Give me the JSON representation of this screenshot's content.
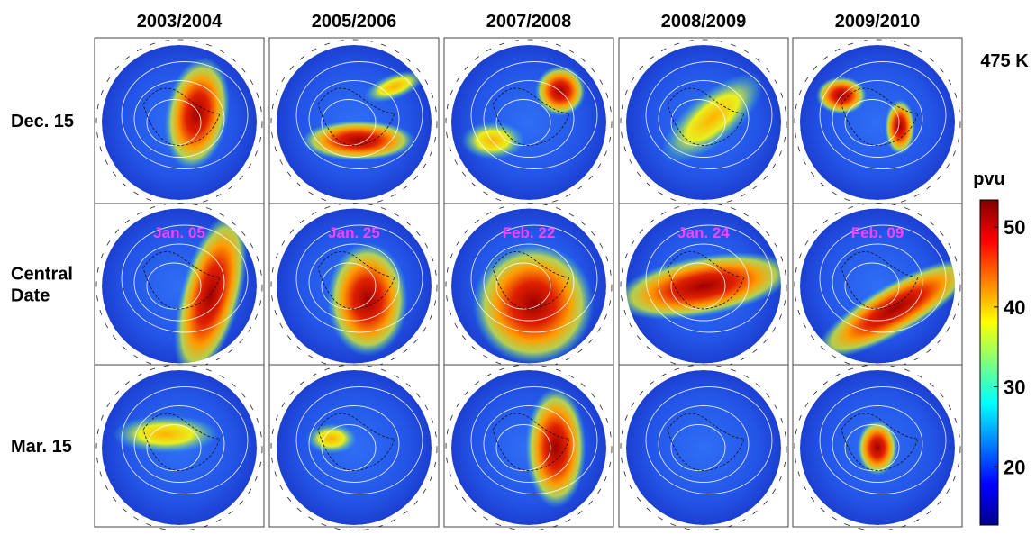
{
  "level": "475 K",
  "columns": [
    "2003/2004",
    "2005/2006",
    "2007/2008",
    "2008/2009",
    "2009/2010"
  ],
  "rows": [
    [
      "Dec. 15"
    ],
    [
      "Central",
      "Date"
    ],
    [
      "Mar. 15"
    ]
  ],
  "central_dates": [
    "Jan. 05",
    "Jan. 25",
    "Feb. 22",
    "Jan. 24",
    "Feb. 09"
  ],
  "colorbar": {
    "label": "pvu",
    "range": [
      12.7,
      53.4
    ],
    "ticks": [
      20,
      30,
      40,
      50
    ]
  }
}
